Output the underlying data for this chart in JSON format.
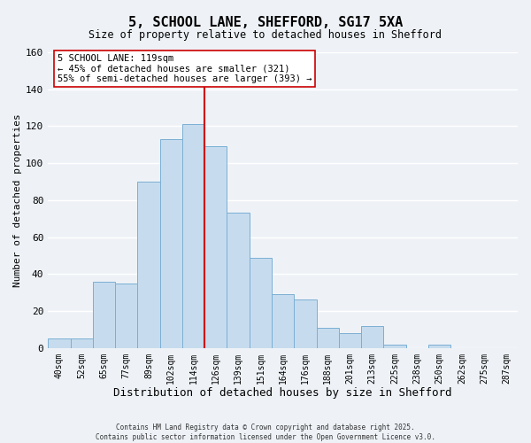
{
  "title": "5, SCHOOL LANE, SHEFFORD, SG17 5XA",
  "subtitle": "Size of property relative to detached houses in Shefford",
  "xlabel": "Distribution of detached houses by size in Shefford",
  "ylabel": "Number of detached properties",
  "bar_labels": [
    "40sqm",
    "52sqm",
    "65sqm",
    "77sqm",
    "89sqm",
    "102sqm",
    "114sqm",
    "126sqm",
    "139sqm",
    "151sqm",
    "164sqm",
    "176sqm",
    "188sqm",
    "201sqm",
    "213sqm",
    "225sqm",
    "238sqm",
    "250sqm",
    "262sqm",
    "275sqm",
    "287sqm"
  ],
  "bar_values": [
    5,
    5,
    36,
    35,
    90,
    113,
    121,
    109,
    73,
    49,
    29,
    26,
    11,
    8,
    12,
    2,
    0,
    2,
    0,
    0,
    0
  ],
  "bar_color": "#c6dcee",
  "bar_edge_color": "#7bafd4",
  "vline_color": "#cc0000",
  "annotation_title": "5 SCHOOL LANE: 119sqm",
  "annotation_line1": "← 45% of detached houses are smaller (321)",
  "annotation_line2": "55% of semi-detached houses are larger (393) →",
  "annotation_box_color": "#ffffff",
  "annotation_box_edge": "#cc0000",
  "ylim": [
    0,
    160
  ],
  "yticks": [
    0,
    20,
    40,
    60,
    80,
    100,
    120,
    140,
    160
  ],
  "background_color": "#eef2f7",
  "grid_color": "#ffffff",
  "footer1": "Contains HM Land Registry data © Crown copyright and database right 2025.",
  "footer2": "Contains public sector information licensed under the Open Government Licence v3.0."
}
